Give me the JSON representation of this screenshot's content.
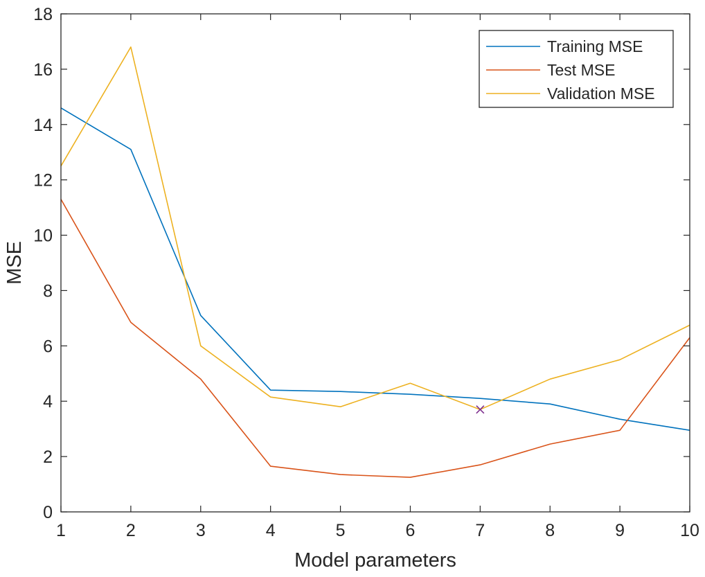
{
  "chart_data": {
    "type": "line",
    "title": "",
    "xlabel": "Model parameters",
    "ylabel": "MSE",
    "xlim": [
      1,
      10
    ],
    "ylim": [
      0,
      18
    ],
    "x": [
      1,
      2,
      3,
      4,
      5,
      6,
      7,
      8,
      9,
      10
    ],
    "x_ticks": [
      "1",
      "2",
      "3",
      "4",
      "5",
      "6",
      "7",
      "8",
      "9",
      "10"
    ],
    "y_ticks": [
      "0",
      "2",
      "4",
      "6",
      "8",
      "10",
      "12",
      "14",
      "16",
      "18"
    ],
    "grid": false,
    "legend_position": "top-right",
    "series": [
      {
        "name": "Training MSE",
        "color": "#0072BD",
        "values": [
          14.6,
          13.1,
          7.1,
          4.4,
          4.35,
          4.25,
          4.1,
          3.9,
          3.35,
          2.95
        ]
      },
      {
        "name": "Test MSE",
        "color": "#D95319",
        "values": [
          11.3,
          6.85,
          4.8,
          1.65,
          1.35,
          1.25,
          1.7,
          2.45,
          2.95,
          6.3
        ]
      },
      {
        "name": "Validation MSE",
        "color": "#EDB120",
        "values": [
          12.5,
          16.8,
          6.0,
          4.15,
          3.8,
          4.65,
          3.7,
          4.8,
          5.5,
          6.75
        ]
      }
    ],
    "marker": {
      "symbol": "x",
      "x": 7,
      "y": 3.7,
      "color": "#7E2F8E"
    }
  }
}
